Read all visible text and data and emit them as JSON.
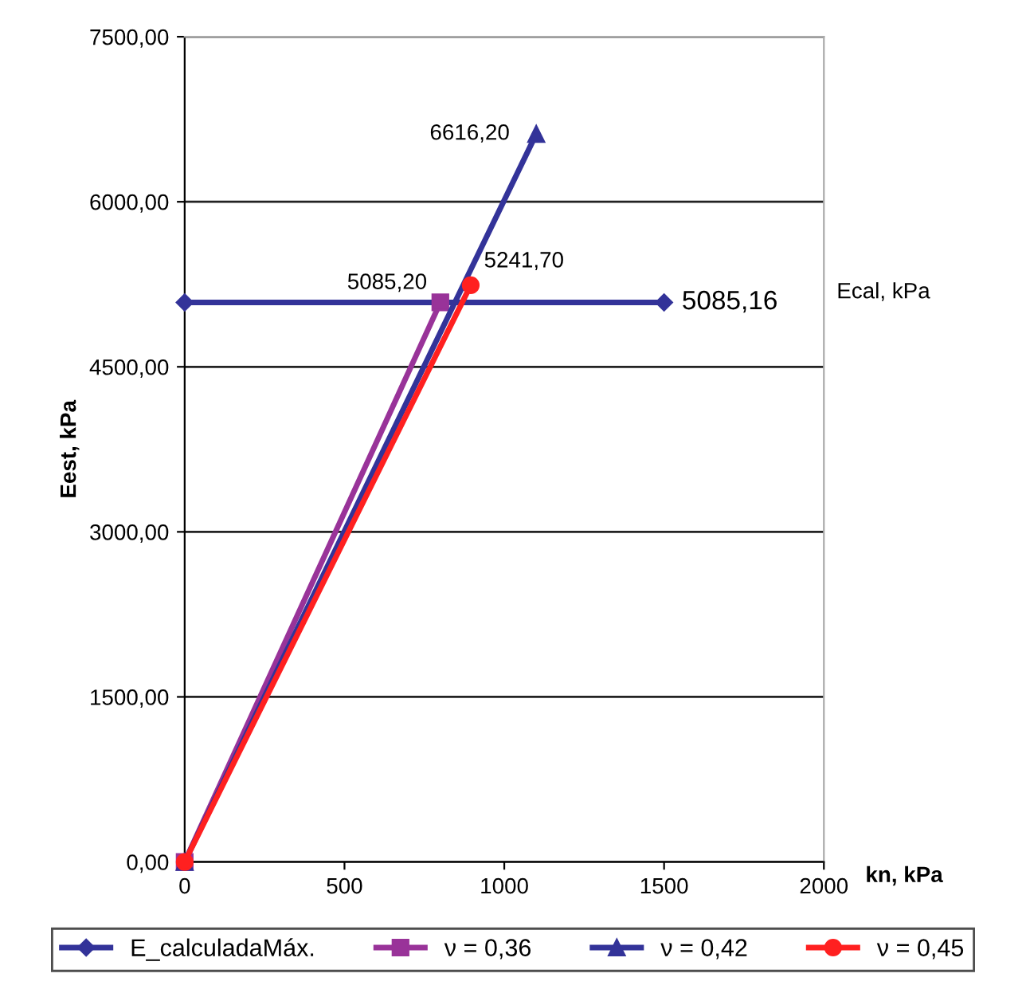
{
  "chart_data": {
    "type": "line",
    "xlabel": "kn, kPa",
    "ylabel": "Eest, kPa",
    "xlim": [
      0,
      2000
    ],
    "xticks": [
      0,
      500,
      1000,
      1500,
      2000
    ],
    "ylim": [
      0,
      7500
    ],
    "yticks": [
      {
        "value": 0,
        "label": "0,00"
      },
      {
        "value": 1500,
        "label": "1500,00"
      },
      {
        "value": 3000,
        "label": "3000,00"
      },
      {
        "value": 4500,
        "label": "4500,00"
      },
      {
        "value": 6000,
        "label": "6000,00"
      },
      {
        "value": 7500,
        "label": "7500,00"
      }
    ],
    "grid": "y",
    "legend": "bottom",
    "series": [
      {
        "name": "E_calculadaMáx.",
        "color": "#333399",
        "marker": "diamond",
        "x": [
          0,
          1500
        ],
        "values": [
          5085.16,
          5085.16
        ]
      },
      {
        "name": "ν = 0,36",
        "color": "#993399",
        "marker": "square",
        "x": [
          0,
          800
        ],
        "values": [
          0,
          5085.2
        ]
      },
      {
        "name": "ν = 0,42",
        "color": "#333399",
        "marker": "triangle",
        "x": [
          0,
          1100
        ],
        "values": [
          0,
          6616.2
        ]
      },
      {
        "name": "ν = 0,45",
        "color": "#ff2020",
        "marker": "circle",
        "x": [
          0,
          895
        ],
        "values": [
          0,
          5241.7
        ]
      }
    ],
    "annotations": [
      {
        "text": "5085,16",
        "x": 1500,
        "y": 5085.16
      },
      {
        "text": "5085,20",
        "x": 800,
        "y": 5085.2
      },
      {
        "text": "6616,20",
        "x": 1100,
        "y": 6616.2
      },
      {
        "text": "5241,70",
        "x": 895,
        "y": 5241.7
      },
      "Ecal, kPa"
    ]
  }
}
